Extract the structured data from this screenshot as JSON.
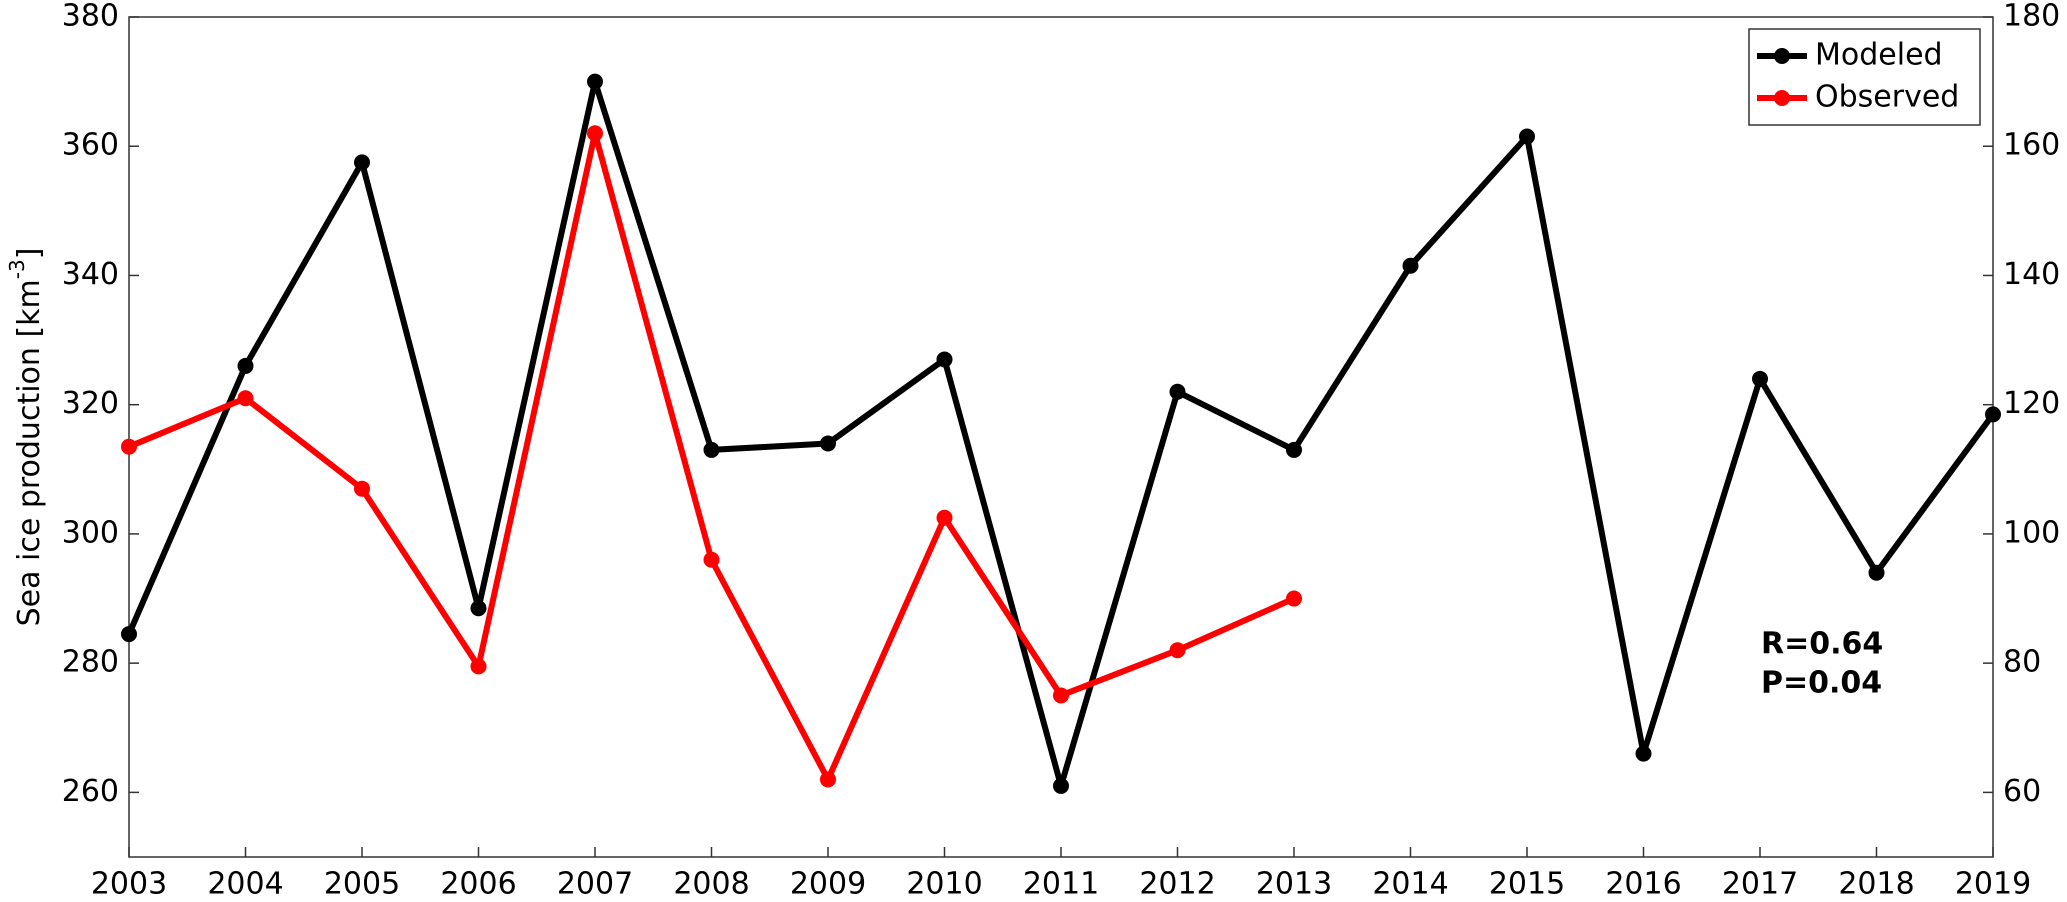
{
  "chart_data": {
    "type": "line",
    "ylabel": {
      "text": "Sea ice production [km",
      "sup": "-3",
      "end": "]"
    },
    "x": [
      2003,
      2004,
      2005,
      2006,
      2007,
      2008,
      2009,
      2010,
      2011,
      2012,
      2013,
      2014,
      2015,
      2016,
      2017,
      2018,
      2019
    ],
    "xlim": [
      2003,
      2019
    ],
    "xticks": [
      2003,
      2004,
      2005,
      2006,
      2007,
      2008,
      2009,
      2010,
      2011,
      2012,
      2013,
      2014,
      2015,
      2016,
      2017,
      2018,
      2019
    ],
    "ylim": [
      250,
      380
    ],
    "yticks": [
      260,
      280,
      300,
      320,
      340,
      360,
      380
    ],
    "y2lim": [
      50,
      180
    ],
    "y2ticks": [
      60,
      80,
      100,
      120,
      140,
      160,
      180
    ],
    "series": [
      {
        "name": "Modeled",
        "color": "#000000",
        "values": [
          284.5,
          326,
          357.5,
          288.5,
          370,
          313,
          314,
          327,
          261,
          322,
          313,
          341.5,
          361.5,
          266,
          324,
          294,
          318.5
        ]
      },
      {
        "name": "Observed",
        "color": "#ff0000",
        "axis": "y2",
        "values": [
          113.5,
          121,
          107,
          79.5,
          162,
          96,
          62,
          102.5,
          75,
          82,
          90,
          null,
          null,
          null,
          null,
          null,
          null
        ]
      }
    ],
    "annotations": [
      "R=0.64",
      "P=0.04"
    ],
    "legend": "upper right"
  }
}
